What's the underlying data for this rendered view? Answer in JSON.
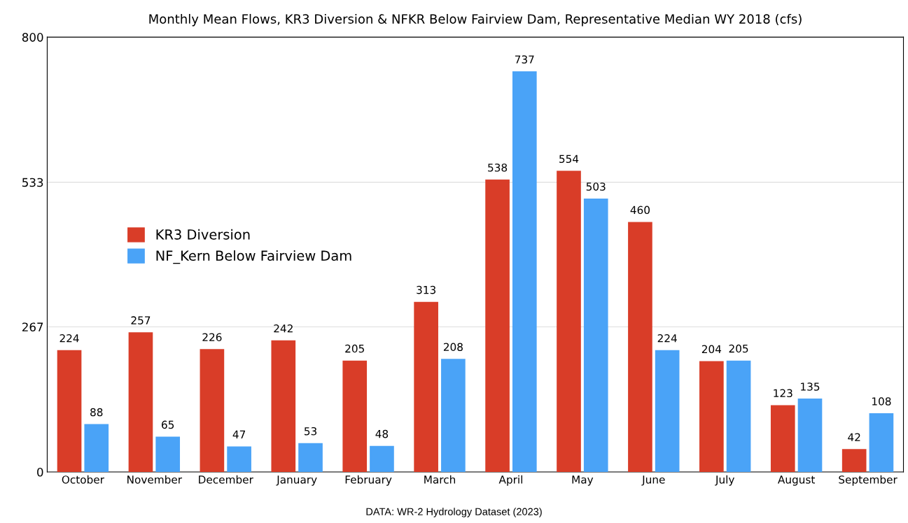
{
  "chart_data": {
    "type": "bar",
    "title": "Monthly Mean Flows, KR3 Diversion & NFKR Below Fairview Dam, Representative Median WY 2018 (cfs)",
    "categories": [
      "October",
      "November",
      "December",
      "January",
      "February",
      "March",
      "April",
      "May",
      "June",
      "July",
      "August",
      "September"
    ],
    "series": [
      {
        "name": "KR3 Diversion",
        "color": "#d93d28",
        "values": [
          224,
          257,
          226,
          242,
          205,
          313,
          538,
          554,
          460,
          204,
          123,
          42
        ]
      },
      {
        "name": "NF_Kern Below Fairview Dam",
        "color": "#4aa3f7",
        "values": [
          88,
          65,
          47,
          53,
          48,
          208,
          737,
          503,
          224,
          205,
          135,
          108
        ]
      }
    ],
    "ylim": [
      0,
      800
    ],
    "yticks": [
      0,
      267,
      533,
      800
    ],
    "grid": "y",
    "legend": "left",
    "data_labels": true,
    "annotations": [
      "DATA: WR-2 Hydrology Dataset (2023)"
    ]
  }
}
